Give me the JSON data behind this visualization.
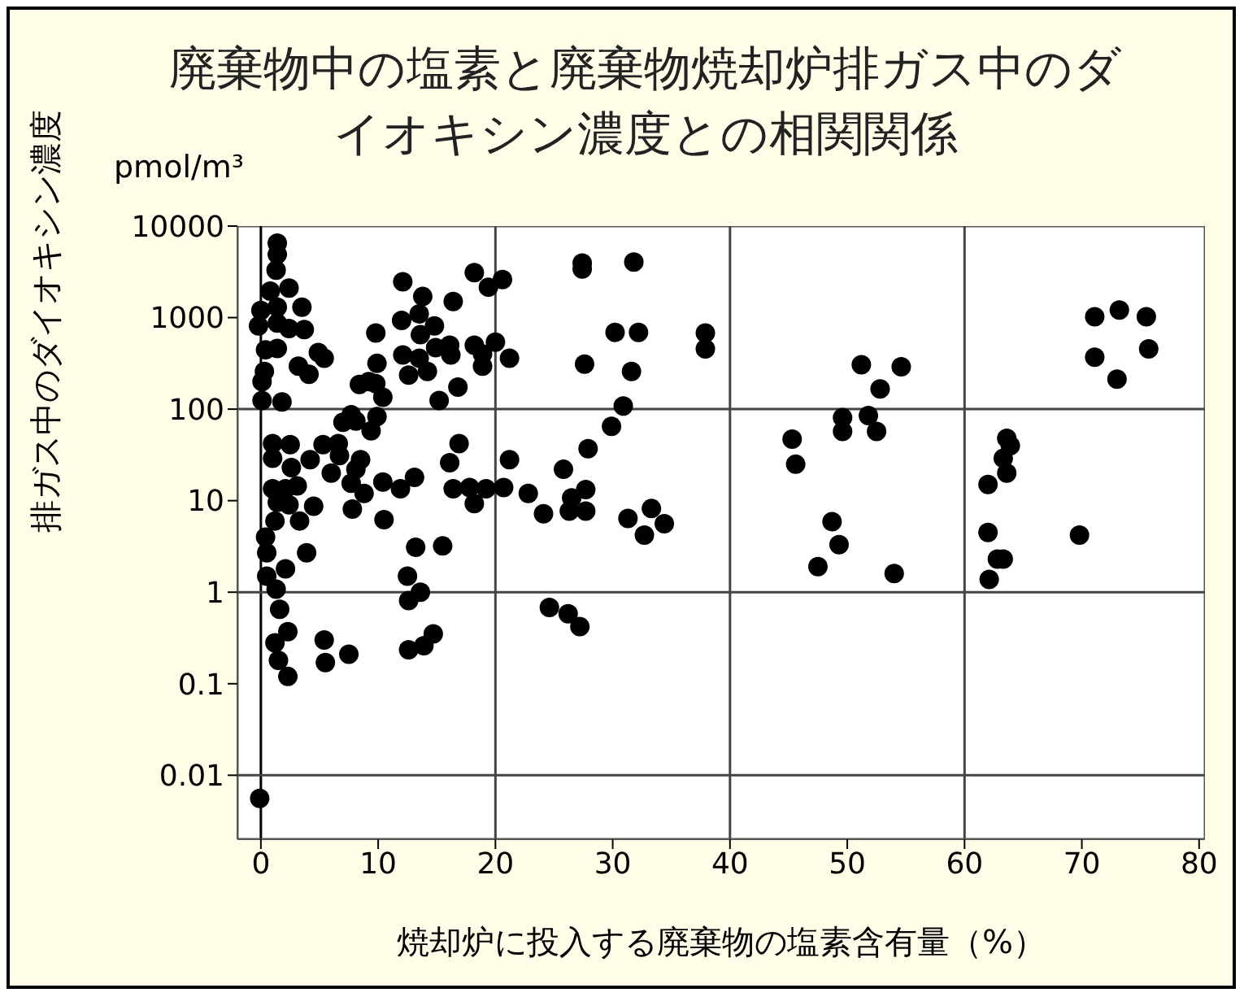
{
  "chart_data": {
    "type": "scatter",
    "title": "廃棄物中の塩素と廃棄物焼却炉排ガス中のダイオキシン濃度との相関関係",
    "xlabel": "焼却炉に投入する廃棄物の塩素含有量（%）",
    "ylabel": "排ガス中のダイオキシン濃度",
    "annotations": [
      "pmol/m³"
    ],
    "log": "y",
    "marker": "circle",
    "grid": false,
    "xlim": [
      -2,
      80.5
    ],
    "xticks": [
      0,
      10,
      20,
      30,
      40,
      50,
      60,
      70,
      80
    ],
    "ylim": [
      0.002,
      10000
    ],
    "yticks": [
      0.01,
      0.1,
      1,
      10,
      100,
      1000,
      10000
    ],
    "ref_lines": [
      {
        "axis": "x",
        "value": 0,
        "color": "#000000"
      },
      {
        "axis": "x",
        "value": 20,
        "color": "#444444"
      },
      {
        "axis": "x",
        "value": 40,
        "color": "#444444"
      },
      {
        "axis": "x",
        "value": 60,
        "color": "#444444"
      },
      {
        "axis": "y",
        "value": 100,
        "color": "#444444"
      },
      {
        "axis": "y",
        "value": 1,
        "color": "#444444"
      },
      {
        "axis": "y",
        "value": 0.01,
        "color": "#444444"
      }
    ],
    "series": [
      {
        "color": "#000000",
        "x": [
          1.4,
          1.4,
          1.3,
          0.8,
          2.4,
          0,
          1.4,
          3.5,
          -0.2,
          1.4,
          2.4,
          3.7,
          0.4,
          1.4,
          3.2,
          4.9,
          5.4,
          4.1,
          0.3,
          0.1,
          0.1,
          1.8,
          9.8,
          12.1,
          12.0,
          12.1,
          12.6,
          9.9,
          9.2,
          8.4,
          10.4,
          9.8,
          8.1,
          7.7,
          7.0,
          9.9,
          9.4,
          1.0,
          2.5,
          5.3,
          6.6,
          1.0,
          2.6,
          4.2,
          6.7,
          8.5,
          6.0,
          8.1,
          1.0,
          2.1,
          3.1,
          7.7,
          8.8,
          10.4,
          11.9,
          13.1,
          1.4,
          2.4,
          4.5,
          7.8,
          1.2,
          3.3,
          10.5,
          0.4,
          3.9,
          0.5,
          2.1,
          0.5,
          1.3,
          1.6,
          2.3,
          1.2,
          5.4,
          1.5,
          5.5,
          7.5,
          2.3,
          -0.1,
          18.2,
          19.4,
          20.6,
          16.4,
          13.8,
          13.5,
          14.8,
          13.6,
          16.1,
          14.9,
          18.2,
          20.0,
          16.2,
          18.9,
          21.2,
          18.9,
          13.5,
          14.2,
          16.8,
          15.2,
          27.4,
          27.4,
          31.8,
          30.2,
          32.2,
          27.6,
          31.6,
          30.9,
          29.9,
          27.9,
          25.8,
          21.2,
          16.9,
          16.1,
          16.4,
          17.8,
          19.2,
          18.2,
          20.7,
          22.8,
          24.1,
          26.5,
          27.7,
          26.3,
          27.7,
          31.3,
          33.3,
          32.7,
          13.2,
          15.5,
          12.5,
          13.6,
          12.6,
          24.6,
          26.2,
          27.2,
          14.7,
          13.9,
          12.6,
          34.4,
          37.9,
          37.9,
          51.2,
          54.6,
          52.8,
          49.6,
          51.8,
          49.6,
          52.5,
          45.3,
          45.6,
          48.7,
          49.3,
          47.5,
          54.0,
          71.1,
          73.2,
          75.5,
          71.1,
          75.7,
          73.0,
          63.6,
          63.9,
          63.3,
          63.6,
          62.0,
          62.0,
          62.8,
          63.3,
          62.1,
          69.8
        ],
        "values": [
          6500,
          4900,
          3300,
          1950,
          2100,
          1200,
          1300,
          1300,
          810,
          870,
          760,
          740,
          445,
          460,
          295,
          415,
          360,
          240,
          258,
          200,
          124,
          120,
          680,
          2460,
          930,
          390,
          235,
          316,
          200,
          186,
          135,
          190,
          74,
          87,
          72,
          83,
          58,
          42,
          41,
          41,
          42,
          29,
          23,
          28,
          31,
          28,
          20,
          22,
          13.5,
          13.5,
          14.5,
          15.5,
          12,
          16,
          13.5,
          18,
          9.6,
          9,
          8.7,
          8.1,
          6,
          6,
          6.2,
          4,
          2.7,
          2.7,
          1.8,
          1.5,
          1.08,
          0.65,
          0.37,
          0.28,
          0.3,
          0.18,
          0.17,
          0.21,
          0.12,
          0.0056,
          3100,
          2150,
          2600,
          1500,
          1700,
          1100,
          810,
          650,
          500,
          470,
          500,
          540,
          390,
          400,
          360,
          295,
          360,
          258,
          174,
          124,
          3950,
          3400,
          4050,
          690,
          690,
          310,
          258,
          108,
          65,
          37,
          22,
          28,
          42,
          26,
          13.5,
          13.9,
          13.5,
          9.3,
          13.9,
          12,
          7.2,
          10.7,
          13.2,
          7.7,
          7.7,
          6.4,
          8.2,
          4.2,
          3.1,
          3.2,
          1.5,
          1.0,
          0.81,
          0.68,
          0.58,
          0.42,
          0.35,
          0.26,
          0.235,
          5.6,
          680,
          455,
          305,
          290,
          166,
          81,
          85,
          57,
          57,
          47,
          25,
          5.9,
          3.3,
          1.9,
          1.6,
          1020,
          1210,
          1020,
          370,
          455,
          213,
          48,
          40,
          29,
          20,
          15,
          4.5,
          2.3,
          2.3,
          1.38,
          4.2
        ]
      }
    ]
  }
}
